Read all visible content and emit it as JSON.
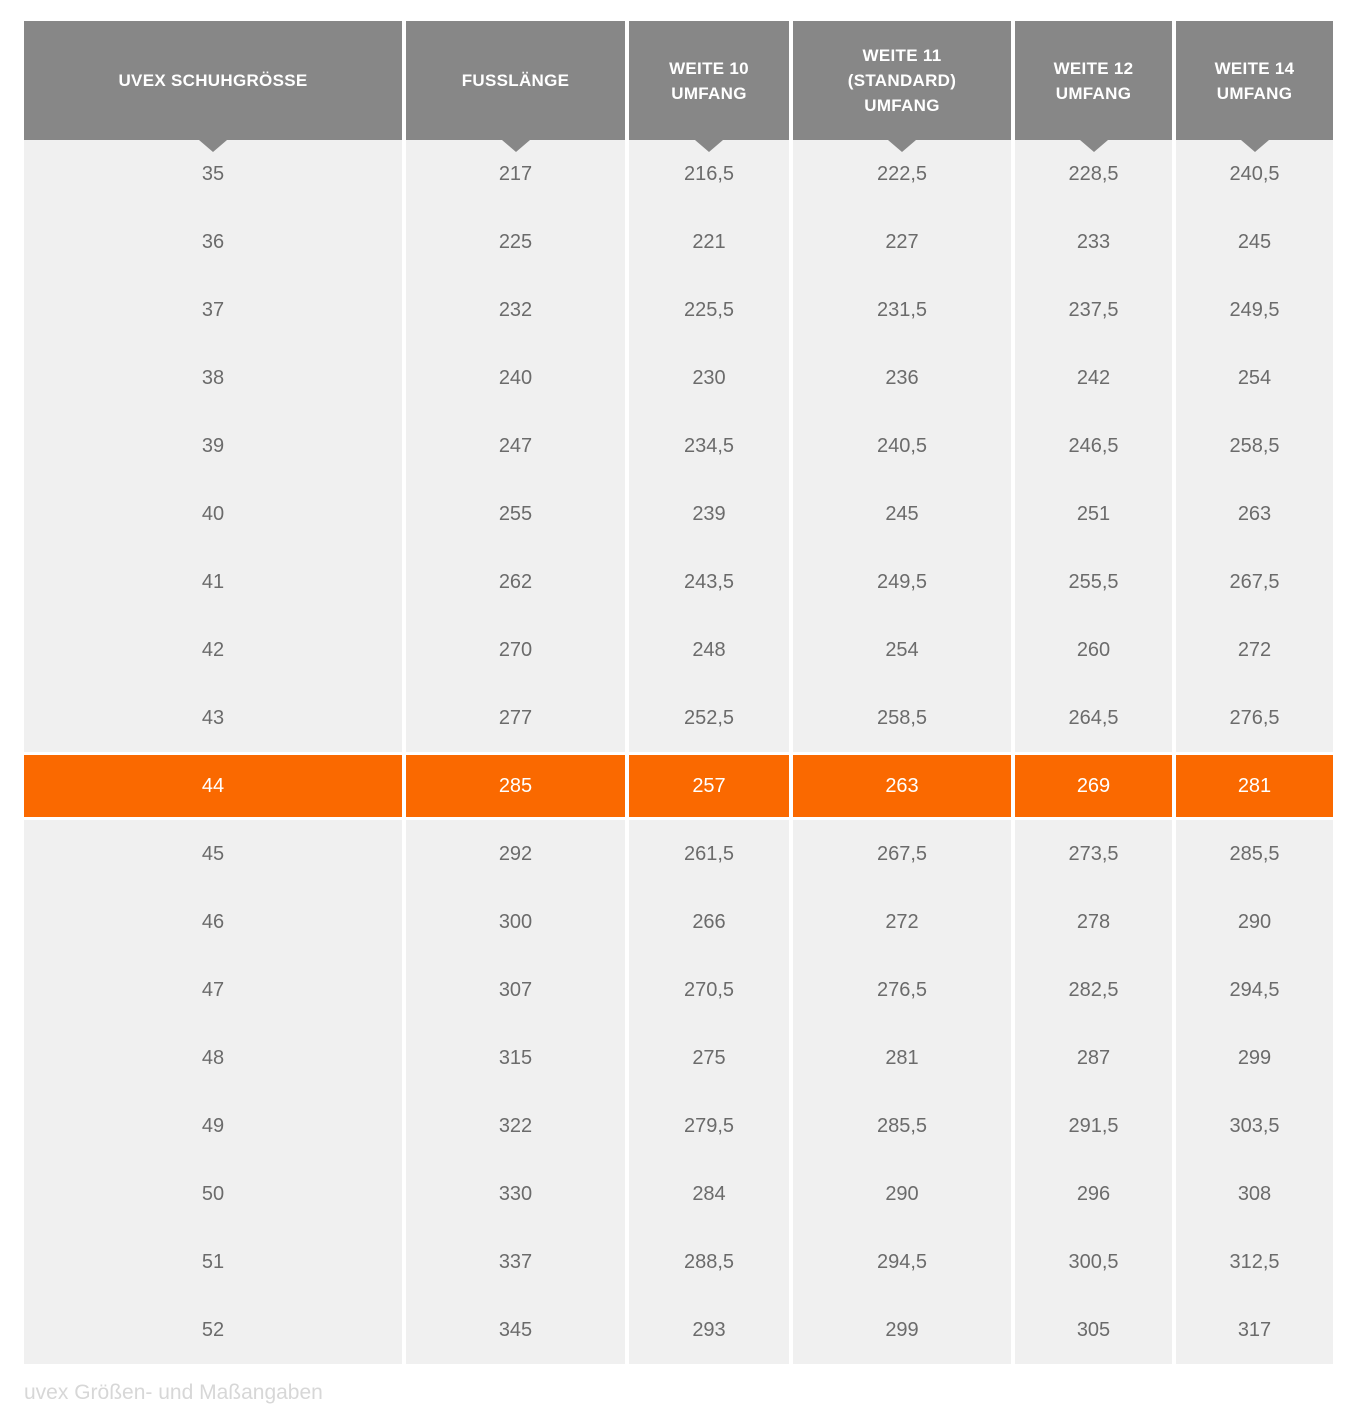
{
  "caption": "uvex Größen- und Maßangaben",
  "colors": {
    "page_bg": "#ffffff",
    "header_bg": "#878787",
    "header_text": "#ffffff",
    "row_bg": "#f0f0f0",
    "row_text": "#6b6b6b",
    "highlight_bg": "#fa6900",
    "highlight_text": "#ffffff",
    "caption_text": "#d7d7d7"
  },
  "chart_data": {
    "type": "table",
    "title": "uvex Größen- und Maßangaben",
    "columns": [
      {
        "key": "schuhgroesse",
        "label": "UVEX SCHUHGRÖSSE"
      },
      {
        "key": "fusslaenge",
        "label": "FUSSLÄNGE"
      },
      {
        "key": "weite10",
        "label": "WEITE 10 UMFANG"
      },
      {
        "key": "weite11",
        "label": "WEITE 11 (STANDARD) UMFANG"
      },
      {
        "key": "weite12",
        "label": "WEITE 12 UMFANG"
      },
      {
        "key": "weite14",
        "label": "WEITE 14 UMFANG"
      }
    ],
    "highlighted_row": "44",
    "rows": [
      [
        "35",
        "217",
        "216,5",
        "222,5",
        "228,5",
        "240,5"
      ],
      [
        "36",
        "225",
        "221",
        "227",
        "233",
        "245"
      ],
      [
        "37",
        "232",
        "225,5",
        "231,5",
        "237,5",
        "249,5"
      ],
      [
        "38",
        "240",
        "230",
        "236",
        "242",
        "254"
      ],
      [
        "39",
        "247",
        "234,5",
        "240,5",
        "246,5",
        "258,5"
      ],
      [
        "40",
        "255",
        "239",
        "245",
        "251",
        "263"
      ],
      [
        "41",
        "262",
        "243,5",
        "249,5",
        "255,5",
        "267,5"
      ],
      [
        "42",
        "270",
        "248",
        "254",
        "260",
        "272"
      ],
      [
        "43",
        "277",
        "252,5",
        "258,5",
        "264,5",
        "276,5"
      ],
      [
        "44",
        "285",
        "257",
        "263",
        "269",
        "281"
      ],
      [
        "45",
        "292",
        "261,5",
        "267,5",
        "273,5",
        "285,5"
      ],
      [
        "46",
        "300",
        "266",
        "272",
        "278",
        "290"
      ],
      [
        "47",
        "307",
        "270,5",
        "276,5",
        "282,5",
        "294,5"
      ],
      [
        "48",
        "315",
        "275",
        "281",
        "287",
        "299"
      ],
      [
        "49",
        "322",
        "279,5",
        "285,5",
        "291,5",
        "303,5"
      ],
      [
        "50",
        "330",
        "284",
        "290",
        "296",
        "308"
      ],
      [
        "51",
        "337",
        "288,5",
        "294,5",
        "300,5",
        "312,5"
      ],
      [
        "52",
        "345",
        "293",
        "299",
        "305",
        "317"
      ]
    ]
  }
}
